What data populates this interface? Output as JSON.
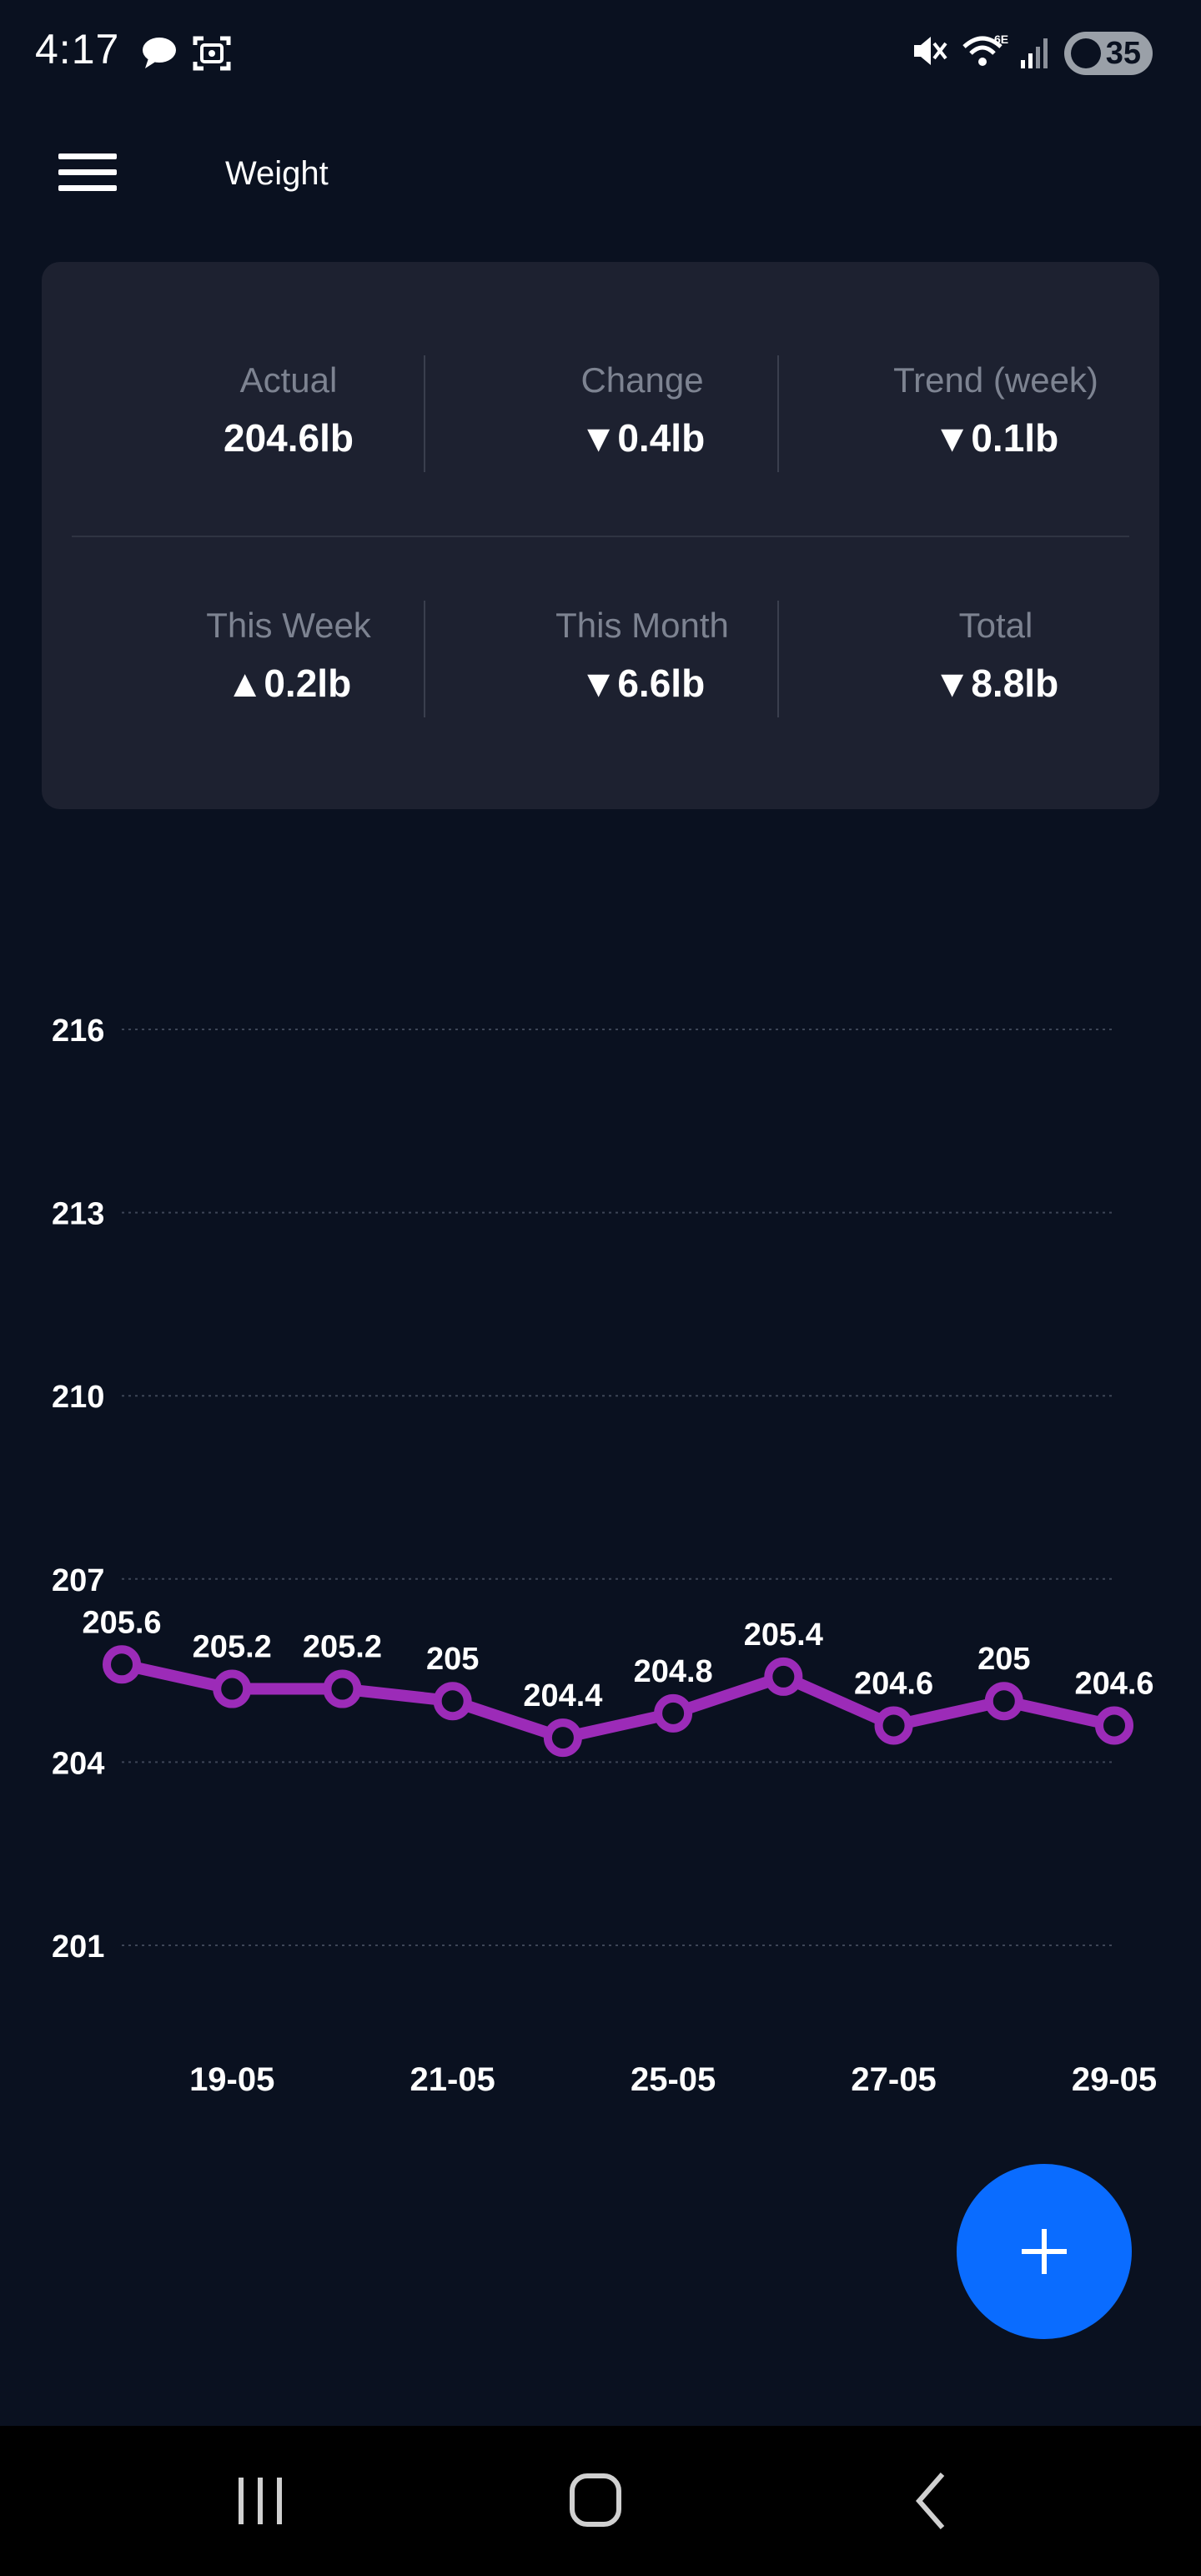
{
  "status_bar": {
    "time": "4:17",
    "battery": "35"
  },
  "app_bar": {
    "title": "Weight",
    "menu_icon": "hamburger-menu-icon"
  },
  "summary": {
    "row1": [
      {
        "label": "Actual",
        "value": "204.6lb"
      },
      {
        "label": "Change",
        "value": "▼0.4lb"
      },
      {
        "label": "Trend (week)",
        "value": "▼0.1lb"
      }
    ],
    "row2": [
      {
        "label": "This Week",
        "value": "▲0.2lb"
      },
      {
        "label": "This Month",
        "value": "▼6.6lb"
      },
      {
        "label": "Total",
        "value": "▼8.8lb"
      }
    ]
  },
  "chart_data": {
    "type": "line",
    "y_ticks": [
      216,
      213,
      210,
      207,
      204,
      201
    ],
    "ylim": [
      201,
      216
    ],
    "x_tick_labels": [
      "19-05",
      "21-05",
      "25-05",
      "27-05",
      "29-05"
    ],
    "values": [
      205.6,
      205.2,
      205.2,
      205,
      204.4,
      204.8,
      205.4,
      204.6,
      205,
      204.6
    ],
    "data_labels": [
      "205.6",
      "205.2",
      "205.2",
      "205",
      "204.4",
      "204.8",
      "205.4",
      "204.6",
      "205",
      "204.6"
    ],
    "series_color": "#9c2bb8",
    "grid": true
  },
  "fab": {
    "icon": "plus-icon"
  },
  "colors": {
    "background": "#0a1120",
    "card": "#1d2130",
    "accent": "#0a6cff",
    "line": "#9c2bb8"
  }
}
